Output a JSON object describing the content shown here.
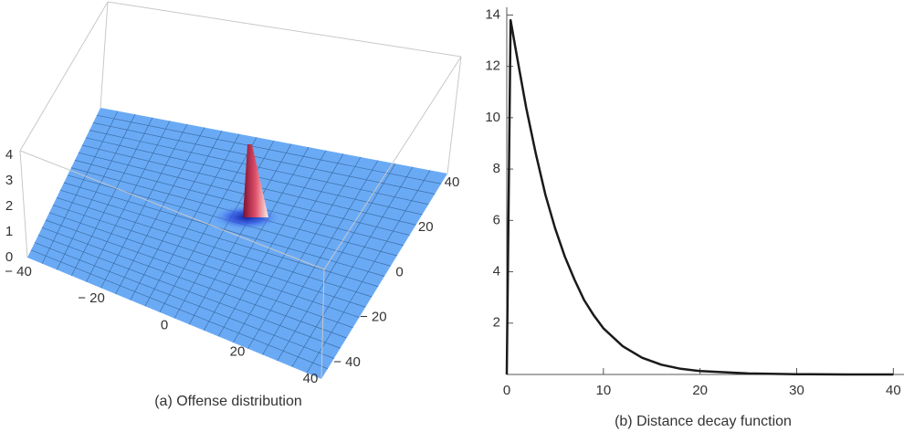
{
  "chart_data": [
    {
      "type": "surface",
      "caption": "(a) Offense distribution",
      "color": "#6aaaf5",
      "xlim": [
        -40,
        40
      ],
      "xticks": [
        {
          "value": -40,
          "label": "− 40"
        },
        {
          "value": -20,
          "label": "− 20"
        },
        0,
        20,
        40
      ],
      "ylim": [
        -40,
        40
      ],
      "yticks": [
        {
          "value": -40,
          "label": "− 40"
        },
        {
          "value": -20,
          "label": "− 20"
        },
        0,
        20,
        40
      ],
      "zlim": [
        0,
        4
      ],
      "zticks": [
        0,
        1,
        2,
        3,
        4
      ]
    },
    {
      "type": "line",
      "caption": "(b) Distance decay function",
      "color": "#1a1a1a",
      "x": [
        0,
        0.4,
        1,
        2,
        3,
        4,
        5,
        6,
        7,
        8,
        9,
        10,
        12,
        14,
        16,
        18,
        20,
        25,
        30,
        35,
        40
      ],
      "values": [
        0,
        13.8,
        12.5,
        10.4,
        8.6,
        7.0,
        5.7,
        4.6,
        3.7,
        2.9,
        2.3,
        1.8,
        1.1,
        0.65,
        0.38,
        0.22,
        0.13,
        0.04,
        0.01,
        0,
        0
      ],
      "xlim": [
        0,
        41.1
      ],
      "xticks": [
        0,
        10,
        20,
        30,
        40
      ],
      "ylim": [
        0,
        14.3
      ],
      "yticks": [
        2,
        4,
        6,
        8,
        10,
        12,
        14
      ]
    }
  ]
}
